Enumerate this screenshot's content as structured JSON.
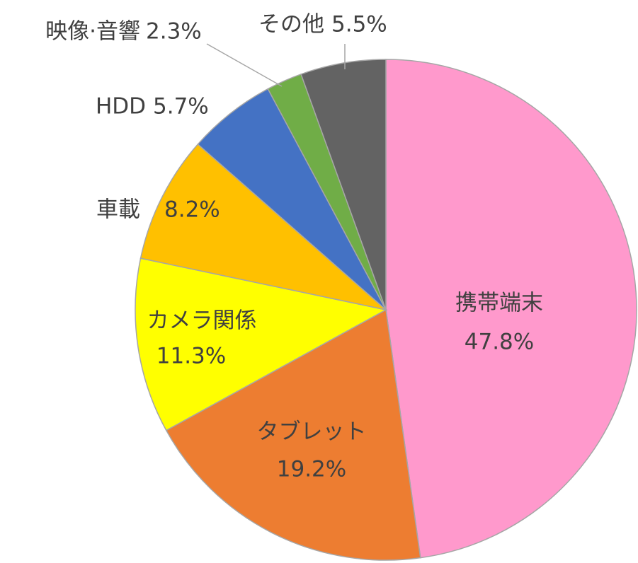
{
  "chart_data": {
    "type": "pie",
    "categories": [
      "携帯端末",
      "タブレット",
      "カメラ関係",
      "車載",
      "HDD",
      "映像·音響",
      "その他"
    ],
    "values": [
      47.8,
      19.2,
      11.3,
      8.2,
      5.7,
      2.3,
      5.5
    ],
    "value_labels": [
      "47.8%",
      "19.2%",
      "11.3%",
      "8.2%",
      "5.7%",
      "2.3%",
      "5.5%"
    ],
    "colors": [
      "#ff99cc",
      "#ed7d31",
      "#ffff00",
      "#ffc000",
      "#4472c4",
      "#70ad47",
      "#636363"
    ]
  }
}
